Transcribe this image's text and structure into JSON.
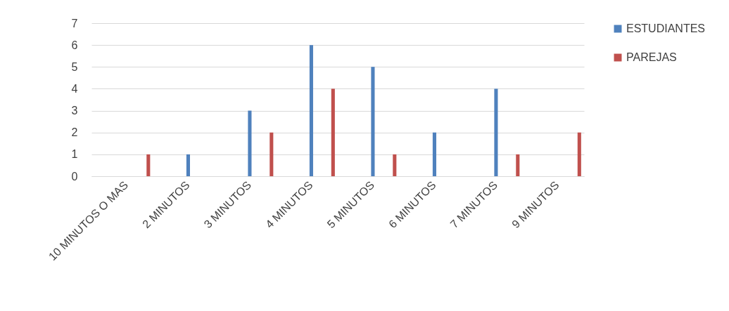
{
  "chart_data": {
    "type": "bar",
    "categories": [
      "10 MINUTOS O MAS",
      "2 MINUTOS",
      "3 MINUTOS",
      "4 MINUTOS",
      "5 MINUTOS",
      "6 MINUTOS",
      "7 MINUTOS",
      "9 MINUTOS"
    ],
    "series": [
      {
        "name": "ESTUDIANTES",
        "color": "#4f81bd",
        "values": [
          0,
          1,
          3,
          6,
          5,
          2,
          4,
          0
        ]
      },
      {
        "name": "PAREJAS",
        "color": "#c0504d",
        "values": [
          1,
          0,
          2,
          4,
          1,
          0,
          1,
          2
        ]
      }
    ],
    "ylim": [
      0,
      7
    ],
    "yticks": [
      0,
      1,
      2,
      3,
      4,
      5,
      6,
      7
    ],
    "grid": "y",
    "legend": "right"
  }
}
